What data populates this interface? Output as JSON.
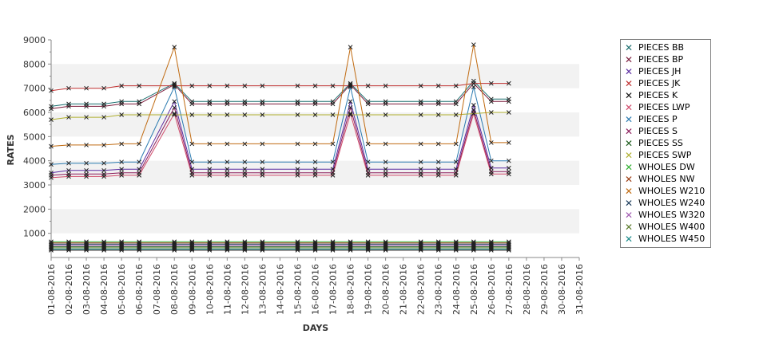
{
  "chart_data": {
    "type": "line",
    "xlabel": "DAYS",
    "ylabel": "RATES",
    "ylim": [
      0,
      9000
    ],
    "y_ticks": [
      1000,
      2000,
      3000,
      4000,
      5000,
      6000,
      7000,
      8000,
      9000
    ],
    "grid": "alternating horizontal bands",
    "legend_position": "right",
    "x": [
      "01-08-2016",
      "02-08-2016",
      "03-08-2016",
      "04-08-2016",
      "05-08-2016",
      "06-08-2016",
      "07-08-2016",
      "08-08-2016",
      "09-08-2016",
      "10-08-2016",
      "11-08-2016",
      "12-08-2016",
      "13-08-2016",
      "14-08-2016",
      "15-08-2016",
      "16-08-2016",
      "17-08-2016",
      "18-08-2016",
      "19-08-2016",
      "20-08-2016",
      "21-08-2016",
      "22-08-2016",
      "23-08-2016",
      "24-08-2016",
      "25-08-2016",
      "26-08-2016",
      "27-08-2016",
      "28-08-2016",
      "29-08-2016",
      "30-08-2016",
      "31-08-2016"
    ],
    "series": [
      {
        "name": "PIECES BB",
        "color": "#1a6e6e",
        "values": [
          6250,
          6350,
          6350,
          6350,
          6450,
          6450,
          null,
          7200,
          6450,
          6450,
          6450,
          6450,
          6450,
          null,
          6450,
          6450,
          6450,
          7200,
          6450,
          6450,
          null,
          6450,
          6450,
          6450,
          7300,
          6550,
          6550,
          null,
          null,
          null,
          null
        ]
      },
      {
        "name": "PIECES BP",
        "color": "#7a1a3a",
        "values": [
          6150,
          6250,
          6250,
          6250,
          6350,
          6350,
          null,
          7150,
          6350,
          6350,
          6350,
          6350,
          6350,
          null,
          6350,
          6350,
          6350,
          7150,
          6350,
          6350,
          null,
          6350,
          6350,
          6350,
          7200,
          6450,
          6450,
          null,
          null,
          null,
          null
        ]
      },
      {
        "name": "PIECES JH",
        "color": "#5a2aa0",
        "values": [
          3500,
          3600,
          3600,
          3600,
          3650,
          3650,
          null,
          6450,
          3650,
          3650,
          3650,
          3650,
          3650,
          null,
          3650,
          3650,
          3650,
          6450,
          3650,
          3650,
          null,
          3650,
          3650,
          3650,
          6300,
          3700,
          3700,
          null,
          null,
          null,
          null
        ]
      },
      {
        "name": "PIECES JK",
        "color": "#c03030",
        "values": [
          6900,
          7000,
          7000,
          7000,
          7100,
          7100,
          null,
          7100,
          7100,
          7100,
          7100,
          7100,
          7100,
          null,
          7100,
          7100,
          7100,
          7100,
          7100,
          7100,
          null,
          7100,
          7100,
          7100,
          7200,
          7200,
          7200,
          null,
          null,
          null,
          null
        ]
      },
      {
        "name": "PIECES K",
        "color": "#101010",
        "values": [
          300,
          300,
          300,
          300,
          300,
          300,
          null,
          300,
          300,
          300,
          300,
          300,
          300,
          null,
          300,
          300,
          300,
          300,
          300,
          300,
          null,
          300,
          300,
          300,
          300,
          300,
          300,
          null,
          null,
          null,
          null
        ]
      },
      {
        "name": "PIECES LWP",
        "color": "#d04a6a",
        "values": [
          3300,
          3350,
          3350,
          3350,
          3400,
          3400,
          null,
          5950,
          3400,
          3400,
          3400,
          3400,
          3400,
          null,
          3400,
          3400,
          3400,
          5950,
          3400,
          3400,
          null,
          3400,
          3400,
          3400,
          5950,
          3450,
          3450,
          null,
          null,
          null,
          null
        ]
      },
      {
        "name": "PIECES P",
        "color": "#2a7ab0",
        "values": [
          3850,
          3900,
          3900,
          3900,
          3950,
          3950,
          null,
          7050,
          3950,
          3950,
          3950,
          3950,
          3950,
          null,
          3950,
          3950,
          3950,
          7050,
          3950,
          3950,
          null,
          3950,
          3950,
          3950,
          7050,
          4000,
          4000,
          null,
          null,
          null,
          null
        ]
      },
      {
        "name": "PIECES S",
        "color": "#8a1a5a",
        "values": [
          3400,
          3450,
          3450,
          3450,
          3500,
          3500,
          null,
          6200,
          3500,
          3500,
          3500,
          3500,
          3500,
          null,
          3500,
          3500,
          3500,
          6200,
          3500,
          3500,
          null,
          3500,
          3500,
          3500,
          6100,
          3550,
          3550,
          null,
          null,
          null,
          null
        ]
      },
      {
        "name": "PIECES SS",
        "color": "#1a5a1a",
        "values": [
          450,
          450,
          450,
          450,
          450,
          450,
          null,
          450,
          450,
          450,
          450,
          450,
          450,
          null,
          450,
          450,
          450,
          450,
          450,
          450,
          null,
          450,
          450,
          450,
          450,
          450,
          450,
          null,
          null,
          null,
          null
        ]
      },
      {
        "name": "PIECES SWP",
        "color": "#b0b030",
        "values": [
          5700,
          5800,
          5800,
          5800,
          5900,
          5900,
          null,
          5900,
          5900,
          5900,
          5900,
          5900,
          5900,
          null,
          5900,
          5900,
          5900,
          5900,
          5900,
          5900,
          null,
          5900,
          5900,
          5900,
          5950,
          6000,
          6000,
          null,
          null,
          null,
          null
        ]
      },
      {
        "name": "WHOLES DW",
        "color": "#30b030",
        "values": [
          650,
          650,
          650,
          650,
          650,
          650,
          null,
          650,
          650,
          650,
          650,
          650,
          650,
          null,
          650,
          650,
          650,
          650,
          650,
          650,
          null,
          650,
          650,
          650,
          650,
          650,
          650,
          null,
          null,
          null,
          null
        ]
      },
      {
        "name": "WHOLES NW",
        "color": "#9a3a10",
        "values": [
          600,
          600,
          600,
          600,
          600,
          600,
          null,
          600,
          600,
          600,
          600,
          600,
          600,
          null,
          600,
          600,
          600,
          600,
          600,
          600,
          null,
          600,
          600,
          600,
          600,
          600,
          600,
          null,
          null,
          null,
          null
        ]
      },
      {
        "name": "WHOLES W210",
        "color": "#c06a10",
        "values": [
          4600,
          4650,
          4650,
          4650,
          4700,
          4700,
          null,
          8700,
          4700,
          4700,
          4700,
          4700,
          4700,
          null,
          4700,
          4700,
          4700,
          8700,
          4700,
          4700,
          null,
          4700,
          4700,
          4700,
          8800,
          4750,
          4750,
          null,
          null,
          null,
          null
        ]
      },
      {
        "name": "WHOLES W240",
        "color": "#1a3a5a",
        "values": [
          550,
          550,
          550,
          550,
          550,
          550,
          null,
          550,
          550,
          550,
          550,
          550,
          550,
          null,
          550,
          550,
          550,
          550,
          550,
          550,
          null,
          550,
          550,
          550,
          550,
          550,
          550,
          null,
          null,
          null,
          null
        ]
      },
      {
        "name": "WHOLES W320",
        "color": "#a05ab0",
        "values": [
          500,
          500,
          500,
          500,
          500,
          500,
          null,
          500,
          500,
          500,
          500,
          500,
          500,
          null,
          500,
          500,
          500,
          500,
          500,
          500,
          null,
          500,
          500,
          500,
          500,
          500,
          500,
          null,
          null,
          null,
          null
        ]
      },
      {
        "name": "WHOLES W400",
        "color": "#5a7a2a",
        "values": [
          400,
          400,
          400,
          400,
          400,
          400,
          null,
          400,
          400,
          400,
          400,
          400,
          400,
          null,
          400,
          400,
          400,
          400,
          400,
          400,
          null,
          400,
          400,
          400,
          400,
          400,
          400,
          null,
          null,
          null,
          null
        ]
      },
      {
        "name": "WHOLES W450",
        "color": "#1a8a8a",
        "values": [
          350,
          350,
          350,
          350,
          350,
          350,
          null,
          350,
          350,
          350,
          350,
          350,
          350,
          null,
          350,
          350,
          350,
          350,
          350,
          350,
          null,
          350,
          350,
          350,
          350,
          350,
          350,
          null,
          null,
          null,
          null
        ]
      }
    ]
  }
}
